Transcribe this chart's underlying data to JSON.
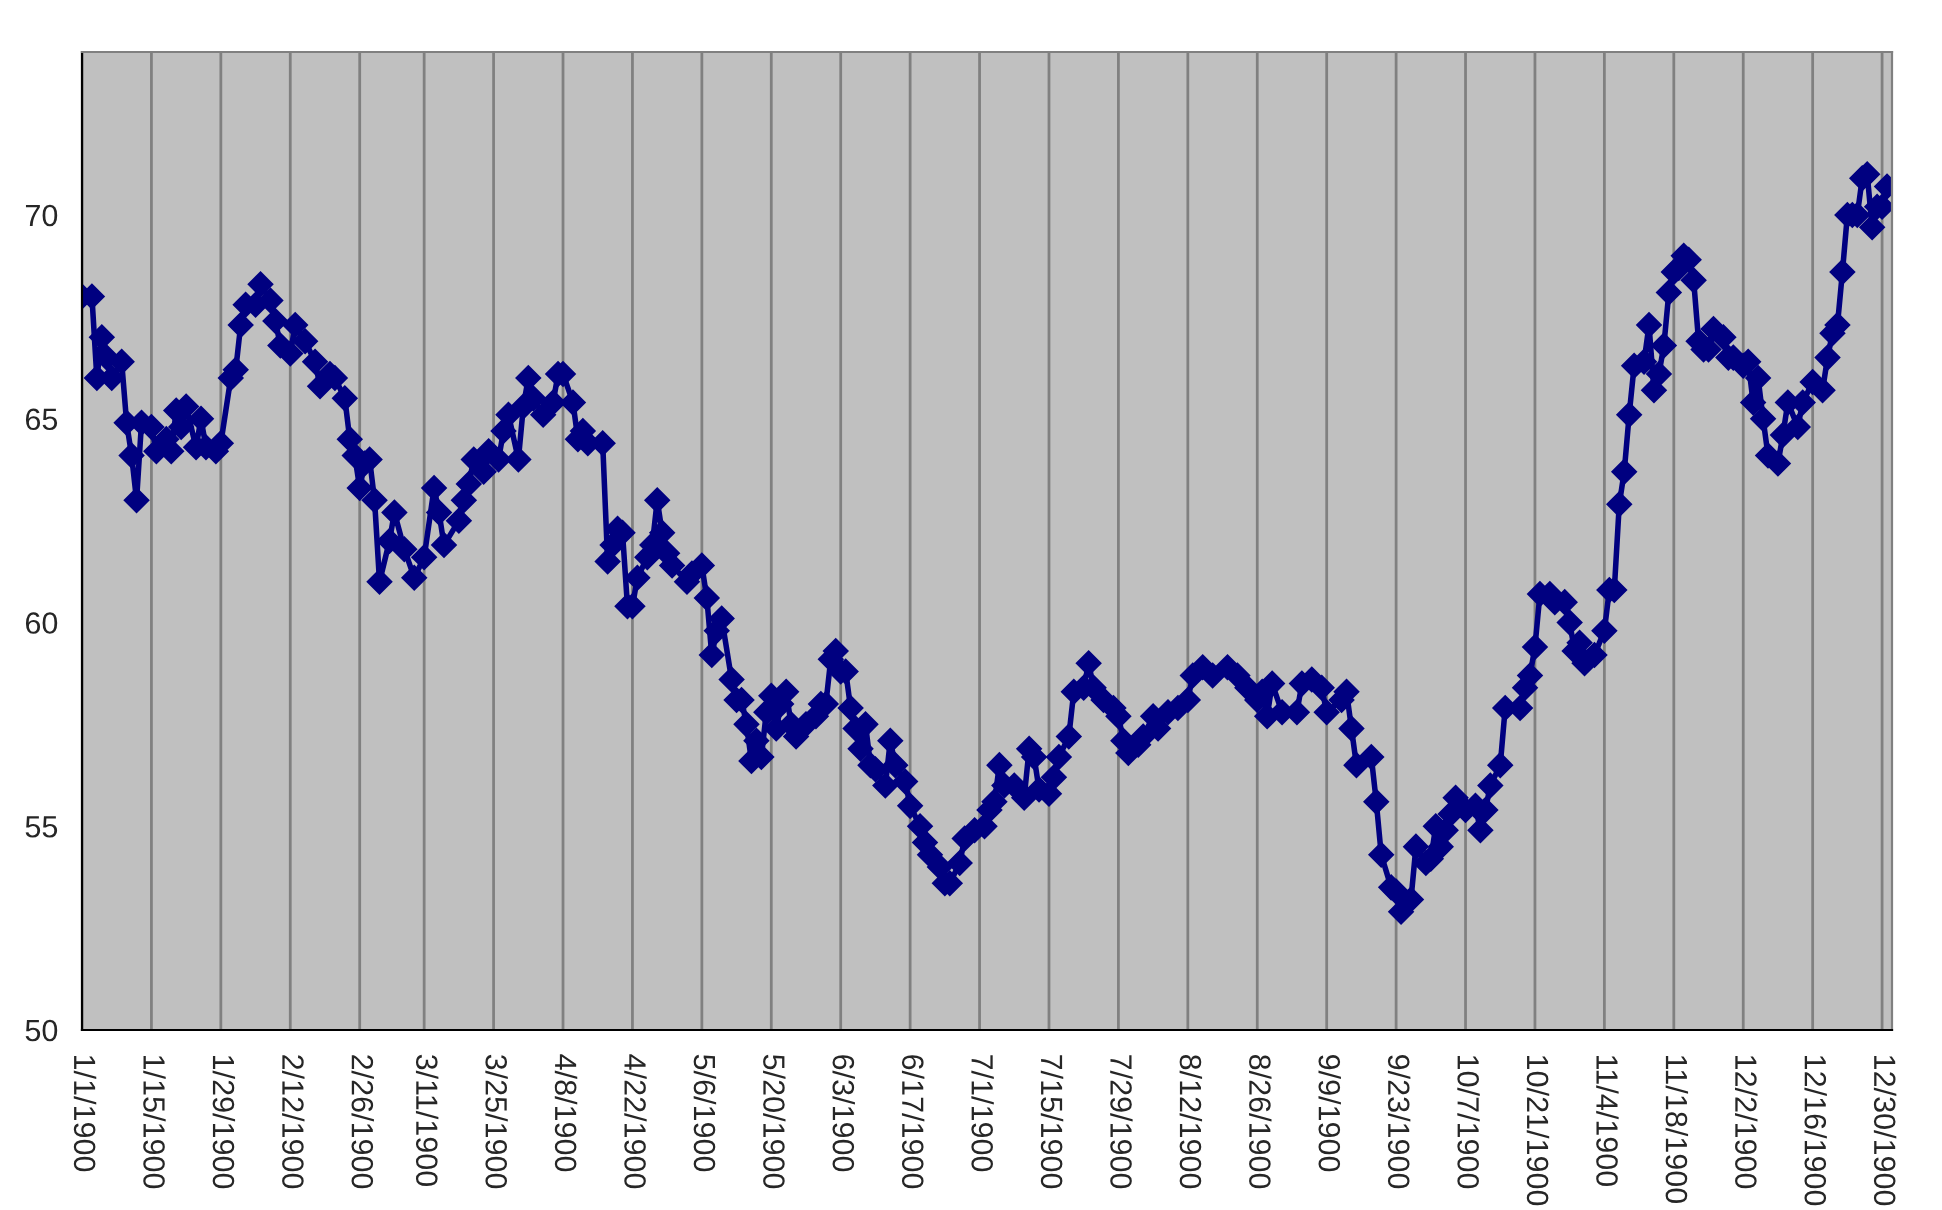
{
  "chart_data": {
    "type": "line",
    "grid": "x",
    "marker": "diamond",
    "line_style": "solid",
    "xlim": [
      "1900-01-01",
      "1901-01-01"
    ],
    "ylim": [
      50,
      74
    ],
    "yticks": [
      50,
      55,
      60,
      65,
      70
    ],
    "xticks": [
      {
        "value": "1900-01-01",
        "label": "1/1/1900"
      },
      {
        "value": "1900-01-15",
        "label": "1/15/1900"
      },
      {
        "value": "1900-01-29",
        "label": "1/29/1900"
      },
      {
        "value": "1900-02-12",
        "label": "2/12/1900"
      },
      {
        "value": "1900-02-26",
        "label": "2/26/1900"
      },
      {
        "value": "1900-03-11",
        "label": "3/11/1900"
      },
      {
        "value": "1900-03-25",
        "label": "3/25/1900"
      },
      {
        "value": "1900-04-08",
        "label": "4/8/1900"
      },
      {
        "value": "1900-04-22",
        "label": "4/22/1900"
      },
      {
        "value": "1900-05-06",
        "label": "5/6/1900"
      },
      {
        "value": "1900-05-20",
        "label": "5/20/1900"
      },
      {
        "value": "1900-06-03",
        "label": "6/3/1900"
      },
      {
        "value": "1900-06-17",
        "label": "6/17/1900"
      },
      {
        "value": "1900-07-01",
        "label": "7/1/1900"
      },
      {
        "value": "1900-07-15",
        "label": "7/15/1900"
      },
      {
        "value": "1900-07-29",
        "label": "7/29/1900"
      },
      {
        "value": "1900-08-12",
        "label": "8/12/1900"
      },
      {
        "value": "1900-08-26",
        "label": "8/26/1900"
      },
      {
        "value": "1900-09-09",
        "label": "9/9/1900"
      },
      {
        "value": "1900-09-23",
        "label": "9/23/1900"
      },
      {
        "value": "1900-10-07",
        "label": "10/7/1900"
      },
      {
        "value": "1900-10-21",
        "label": "10/21/1900"
      },
      {
        "value": "1900-11-04",
        "label": "11/4/1900"
      },
      {
        "value": "1900-11-18",
        "label": "11/18/1900"
      },
      {
        "value": "1900-12-02",
        "label": "12/2/1900"
      },
      {
        "value": "1900-12-16",
        "label": "12/16/1900"
      },
      {
        "value": "1900-12-30",
        "label": "12/30/1900"
      }
    ],
    "series": [
      {
        "color": "#000080",
        "x": [
          "1900-01-01",
          "1900-01-03",
          "1900-01-04",
          "1900-01-05",
          "1900-01-06",
          "1900-01-07",
          "1900-01-09",
          "1900-01-10",
          "1900-01-11",
          "1900-01-12",
          "1900-01-13",
          "1900-01-15",
          "1900-01-16",
          "1900-01-18",
          "1900-01-19",
          "1900-01-20",
          "1900-01-21",
          "1900-01-22",
          "1900-01-24",
          "1900-01-25",
          "1900-01-26",
          "1900-01-28",
          "1900-01-29",
          "1900-01-31",
          "1900-02-01",
          "1900-02-02",
          "1900-02-03",
          "1900-02-05",
          "1900-02-06",
          "1900-02-08",
          "1900-02-09",
          "1900-02-10",
          "1900-02-12",
          "1900-02-13",
          "1900-02-15",
          "1900-02-17",
          "1900-02-18",
          "1900-02-20",
          "1900-02-21",
          "1900-02-23",
          "1900-02-24",
          "1900-02-25",
          "1900-02-26",
          "1900-02-27",
          "1900-02-28",
          "1900-03-01",
          "1900-03-02",
          "1900-03-04",
          "1900-03-05",
          "1900-03-07",
          "1900-03-09",
          "1900-03-11",
          "1900-03-13",
          "1900-03-14",
          "1900-03-15",
          "1900-03-18",
          "1900-03-19",
          "1900-03-20",
          "1900-03-21",
          "1900-03-23",
          "1900-03-24",
          "1900-03-26",
          "1900-03-27",
          "1900-03-28",
          "1900-03-30",
          "1900-03-31",
          "1900-04-01",
          "1900-04-02",
          "1900-04-04",
          "1900-04-06",
          "1900-04-07",
          "1900-04-08",
          "1900-04-10",
          "1900-04-11",
          "1900-04-12",
          "1900-04-13",
          "1900-04-16",
          "1900-04-17",
          "1900-04-18",
          "1900-04-19",
          "1900-04-20",
          "1900-04-21",
          "1900-04-22",
          "1900-04-23",
          "1900-04-25",
          "1900-04-26",
          "1900-04-27",
          "1900-04-28",
          "1900-04-29",
          "1900-04-30",
          "1900-05-03",
          "1900-05-04",
          "1900-05-06",
          "1900-05-07",
          "1900-05-08",
          "1900-05-09",
          "1900-05-10",
          "1900-05-12",
          "1900-05-13",
          "1900-05-14",
          "1900-05-15",
          "1900-05-16",
          "1900-05-17",
          "1900-05-18",
          "1900-05-19",
          "1900-05-20",
          "1900-05-21",
          "1900-05-22",
          "1900-05-23",
          "1900-05-24",
          "1900-05-25",
          "1900-05-27",
          "1900-05-29",
          "1900-05-30",
          "1900-05-31",
          "1900-06-01",
          "1900-06-02",
          "1900-06-03",
          "1900-06-04",
          "1900-06-05",
          "1900-06-06",
          "1900-06-07",
          "1900-06-08",
          "1900-06-09",
          "1900-06-10",
          "1900-06-12",
          "1900-06-13",
          "1900-06-14",
          "1900-06-16",
          "1900-06-17",
          "1900-06-19",
          "1900-06-20",
          "1900-06-21",
          "1900-06-23",
          "1900-06-24",
          "1900-06-25",
          "1900-06-27",
          "1900-06-28",
          "1900-06-30",
          "1900-07-02",
          "1900-07-03",
          "1900-07-04",
          "1900-07-05",
          "1900-07-06",
          "1900-07-08",
          "1900-07-10",
          "1900-07-11",
          "1900-07-12",
          "1900-07-13",
          "1900-07-15",
          "1900-07-16",
          "1900-07-17",
          "1900-07-19",
          "1900-07-20",
          "1900-07-22",
          "1900-07-23",
          "1900-07-24",
          "1900-07-26",
          "1900-07-28",
          "1900-07-29",
          "1900-07-30",
          "1900-07-31",
          "1900-08-02",
          "1900-08-03",
          "1900-08-05",
          "1900-08-06",
          "1900-08-08",
          "1900-08-10",
          "1900-08-12",
          "1900-08-13",
          "1900-08-15",
          "1900-08-17",
          "1900-08-20",
          "1900-08-22",
          "1900-08-24",
          "1900-08-26",
          "1900-08-27",
          "1900-08-28",
          "1900-08-29",
          "1900-08-31",
          "1900-09-03",
          "1900-09-04",
          "1900-09-06",
          "1900-09-08",
          "1900-09-09",
          "1900-09-12",
          "1900-09-13",
          "1900-09-14",
          "1900-09-15",
          "1900-09-18",
          "1900-09-19",
          "1900-09-20",
          "1900-09-22",
          "1900-09-23",
          "1900-09-24",
          "1900-09-26",
          "1900-09-27",
          "1900-09-29",
          "1900-09-30",
          "1900-10-01",
          "1900-10-02",
          "1900-10-03",
          "1900-10-04",
          "1900-10-05",
          "1900-10-07",
          "1900-10-09",
          "1900-10-10",
          "1900-10-11",
          "1900-10-12",
          "1900-10-14",
          "1900-10-15",
          "1900-10-18",
          "1900-10-19",
          "1900-10-20",
          "1900-10-21",
          "1900-10-22",
          "1900-10-24",
          "1900-10-25",
          "1900-10-27",
          "1900-10-28",
          "1900-10-29",
          "1900-10-30",
          "1900-10-31",
          "1900-11-02",
          "1900-11-04",
          "1900-11-05",
          "1900-11-06",
          "1900-11-07",
          "1900-11-08",
          "1900-11-09",
          "1900-11-10",
          "1900-11-12",
          "1900-11-13",
          "1900-11-14",
          "1900-11-15",
          "1900-11-16",
          "1900-11-17",
          "1900-11-18",
          "1900-11-19",
          "1900-11-20",
          "1900-11-21",
          "1900-11-22",
          "1900-11-23",
          "1900-11-24",
          "1900-11-25",
          "1900-11-26",
          "1900-11-28",
          "1900-11-29",
          "1900-11-30",
          "1900-12-02",
          "1900-12-03",
          "1900-12-04",
          "1900-12-05",
          "1900-12-06",
          "1900-12-07",
          "1900-12-09",
          "1900-12-10",
          "1900-12-11",
          "1900-12-13",
          "1900-12-14",
          "1900-12-16",
          "1900-12-18",
          "1900-12-19",
          "1900-12-20",
          "1900-12-21",
          "1900-12-22",
          "1900-12-23",
          "1900-12-24",
          "1900-12-25",
          "1900-12-26",
          "1900-12-27",
          "1900-12-28",
          "1900-12-29",
          "1900-12-30",
          "1900-12-31"
        ],
        "values": [
          68.0,
          68.0,
          66.0,
          67.0,
          66.5,
          66.0,
          66.4,
          64.9,
          64.1,
          63.0,
          64.9,
          64.8,
          64.2,
          64.5,
          64.2,
          65.2,
          64.8,
          65.3,
          64.3,
          65.0,
          64.3,
          64.2,
          64.4,
          66.0,
          66.2,
          67.3,
          67.8,
          67.8,
          68.3,
          67.9,
          67.4,
          66.8,
          66.6,
          67.3,
          66.9,
          66.4,
          65.8,
          66.1,
          66.0,
          65.5,
          64.5,
          64.1,
          63.3,
          63.9,
          64.0,
          63.0,
          61.0,
          62.0,
          62.7,
          61.8,
          61.1,
          61.6,
          63.3,
          62.7,
          61.9,
          62.5,
          63.0,
          63.4,
          64.0,
          63.7,
          64.2,
          64.0,
          64.7,
          65.1,
          64.0,
          65.3,
          66.0,
          65.5,
          65.1,
          65.4,
          66.1,
          66.1,
          65.4,
          64.5,
          64.7,
          64.4,
          64.4,
          61.5,
          61.9,
          62.3,
          62.2,
          60.4,
          60.4,
          61.1,
          61.6,
          61.9,
          63.0,
          62.2,
          61.7,
          61.4,
          61.0,
          61.2,
          61.4,
          60.6,
          59.2,
          59.8,
          60.1,
          58.6,
          58.1,
          58.1,
          57.5,
          56.6,
          57.1,
          56.7,
          57.8,
          58.2,
          57.4,
          58.0,
          58.3,
          57.5,
          57.2,
          57.5,
          57.7,
          58.0,
          58.0,
          59.1,
          59.3,
          58.8,
          58.8,
          57.9,
          57.4,
          56.9,
          57.5,
          56.5,
          56.4,
          56.0,
          57.1,
          56.5,
          56.1,
          55.5,
          55.0,
          54.6,
          54.3,
          54.0,
          53.6,
          53.6,
          54.1,
          54.7,
          54.9,
          55.0,
          55.4,
          55.6,
          56.5,
          56.0,
          56.0,
          55.7,
          56.9,
          56.7,
          55.9,
          55.8,
          56.2,
          56.7,
          57.2,
          58.3,
          58.4,
          59.0,
          58.4,
          58.1,
          57.9,
          57.7,
          57.1,
          56.8,
          57.0,
          57.2,
          57.7,
          57.4,
          57.8,
          57.9,
          58.1,
          58.7,
          58.9,
          58.7,
          58.9,
          58.7,
          58.4,
          58.1,
          58.3,
          57.7,
          58.5,
          57.8,
          57.8,
          58.5,
          58.6,
          58.4,
          57.8,
          58.1,
          58.3,
          57.4,
          56.5,
          56.7,
          55.6,
          54.3,
          53.5,
          53.4,
          52.9,
          53.2,
          54.5,
          54.1,
          54.2,
          55.0,
          54.5,
          54.9,
          55.3,
          55.7,
          55.4,
          55.5,
          54.9,
          55.4,
          56.0,
          56.5,
          57.9,
          57.9,
          58.4,
          58.7,
          59.4,
          60.7,
          60.7,
          60.5,
          60.5,
          60.0,
          59.3,
          59.5,
          59.0,
          59.2,
          59.8,
          60.8,
          60.8,
          62.9,
          63.7,
          65.1,
          66.3,
          66.4,
          67.3,
          65.7,
          66.1,
          66.8,
          68.1,
          68.6,
          68.7,
          69.0,
          68.9,
          68.4,
          66.9,
          66.7,
          66.7,
          67.2,
          67.0,
          66.5,
          66.5,
          66.3,
          66.4,
          65.4,
          66.0,
          65.0,
          64.1,
          63.9,
          64.6,
          65.4,
          64.8,
          65.4,
          65.9,
          65.7,
          66.5,
          67.1,
          67.3,
          68.6,
          70.0,
          70.0,
          70.0,
          70.9,
          71.0,
          69.7,
          70.2,
          70.2,
          70.7
        ]
      }
    ]
  }
}
